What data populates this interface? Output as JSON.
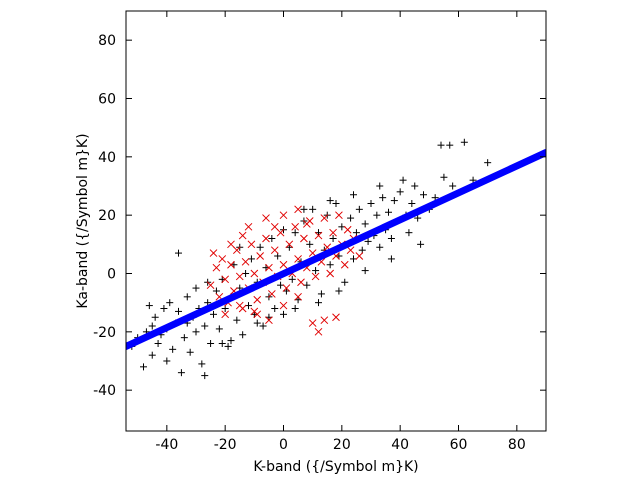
{
  "chart_data": {
    "type": "scatter",
    "title": "",
    "xlabel": "K-band ({/Symbol m}K)",
    "ylabel": "Ka-band ({/Symbol m}K)",
    "xlim": [
      -54,
      90
    ],
    "ylim": [
      -54,
      90
    ],
    "xticks": [
      -40,
      -20,
      0,
      20,
      40,
      60,
      80
    ],
    "yticks": [
      -40,
      -20,
      0,
      20,
      40,
      60,
      80
    ],
    "colors": {
      "black_series": "#000000",
      "red_series": "#e00000",
      "fit_line": "#0000ff"
    },
    "series": [
      {
        "marker": "plus",
        "color": "#000000",
        "points": [
          [
            -52,
            -25
          ],
          [
            -50,
            -22
          ],
          [
            -48,
            -32
          ],
          [
            -47,
            -20
          ],
          [
            -45,
            -18
          ],
          [
            -45,
            -28
          ],
          [
            -44,
            -15
          ],
          [
            -43,
            -24
          ],
          [
            -42,
            -21
          ],
          [
            -41,
            -12
          ],
          [
            -40,
            -30
          ],
          [
            -40,
            -19
          ],
          [
            -39,
            -10
          ],
          [
            -38,
            -26
          ],
          [
            -37,
            -17
          ],
          [
            -36,
            7
          ],
          [
            -36,
            -13
          ],
          [
            -35,
            -34
          ],
          [
            -34,
            -22
          ],
          [
            -33,
            -8
          ],
          [
            -32,
            -27
          ],
          [
            -31,
            -15
          ],
          [
            -30,
            -5
          ],
          [
            -30,
            -20
          ],
          [
            -29,
            -12
          ],
          [
            -28,
            -31
          ],
          [
            -27,
            -18
          ],
          [
            -26,
            -3
          ],
          [
            -26,
            -10
          ],
          [
            -25,
            -24
          ],
          [
            -24,
            -14
          ],
          [
            -23,
            -6
          ],
          [
            -22,
            -19
          ],
          [
            -21,
            -2
          ],
          [
            -20,
            -12
          ],
          [
            -19,
            -25
          ],
          [
            -18,
            -8
          ],
          [
            -17,
            3
          ],
          [
            -16,
            -16
          ],
          [
            -15,
            -5
          ],
          [
            -14,
            -21
          ],
          [
            -13,
            0
          ],
          [
            -12,
            -11
          ],
          [
            -11,
            5
          ],
          [
            -10,
            -14
          ],
          [
            -9,
            -3
          ],
          [
            -8,
            9
          ],
          [
            -7,
            -18
          ],
          [
            -6,
            2
          ],
          [
            -5,
            -8
          ],
          [
            -4,
            12
          ],
          [
            -3,
            -12
          ],
          [
            -2,
            6
          ],
          [
            -1,
            -4
          ],
          [
            0,
            15
          ],
          [
            1,
            -6
          ],
          [
            2,
            9
          ],
          [
            3,
            -2
          ],
          [
            4,
            14
          ],
          [
            5,
            -9
          ],
          [
            6,
            4
          ],
          [
            7,
            18
          ],
          [
            8,
            -4
          ],
          [
            9,
            10
          ],
          [
            10,
            22
          ],
          [
            11,
            1
          ],
          [
            12,
            14
          ],
          [
            13,
            -7
          ],
          [
            14,
            8
          ],
          [
            15,
            20
          ],
          [
            16,
            3
          ],
          [
            17,
            12
          ],
          [
            18,
            24
          ],
          [
            19,
            6
          ],
          [
            20,
            16
          ],
          [
            21,
            -3
          ],
          [
            22,
            10
          ],
          [
            23,
            19
          ],
          [
            24,
            5
          ],
          [
            25,
            14
          ],
          [
            26,
            22
          ],
          [
            27,
            8
          ],
          [
            28,
            17
          ],
          [
            29,
            11
          ],
          [
            30,
            24
          ],
          [
            31,
            13
          ],
          [
            32,
            20
          ],
          [
            33,
            9
          ],
          [
            34,
            26
          ],
          [
            35,
            15
          ],
          [
            36,
            21
          ],
          [
            37,
            12
          ],
          [
            38,
            25
          ],
          [
            39,
            18
          ],
          [
            40,
            28
          ],
          [
            42,
            20
          ],
          [
            43,
            14
          ],
          [
            44,
            24
          ],
          [
            45,
            30
          ],
          [
            46,
            19
          ],
          [
            48,
            27
          ],
          [
            50,
            22
          ],
          [
            52,
            26
          ],
          [
            54,
            44
          ],
          [
            55,
            33
          ],
          [
            57,
            44
          ],
          [
            58,
            30
          ],
          [
            62,
            45
          ],
          [
            65,
            32
          ],
          [
            70,
            38
          ],
          [
            -46,
            -11
          ],
          [
            -33,
            -17
          ],
          [
            -27,
            -35
          ],
          [
            -21,
            -24
          ],
          [
            -18,
            -23
          ],
          [
            -15,
            9
          ],
          [
            -9,
            -17
          ],
          [
            -5,
            -15
          ],
          [
            0,
            -14
          ],
          [
            4,
            -12
          ],
          [
            7,
            22
          ],
          [
            12,
            -10
          ],
          [
            16,
            25
          ],
          [
            19,
            -6
          ],
          [
            24,
            27
          ],
          [
            28,
            1
          ],
          [
            33,
            30
          ],
          [
            37,
            5
          ],
          [
            41,
            32
          ],
          [
            47,
            10
          ]
        ]
      },
      {
        "marker": "cross",
        "color": "#e00000",
        "points": [
          [
            -25,
            -4
          ],
          [
            -23,
            2
          ],
          [
            -22,
            -8
          ],
          [
            -21,
            5
          ],
          [
            -20,
            -2
          ],
          [
            -19,
            -10
          ],
          [
            -18,
            3
          ],
          [
            -17,
            -6
          ],
          [
            -16,
            8
          ],
          [
            -15,
            -1
          ],
          [
            -14,
            -12
          ],
          [
            -13,
            4
          ],
          [
            -12,
            -5
          ],
          [
            -11,
            10
          ],
          [
            -10,
            0
          ],
          [
            -9,
            -9
          ],
          [
            -8,
            6
          ],
          [
            -7,
            -3
          ],
          [
            -6,
            12
          ],
          [
            -5,
            2
          ],
          [
            -4,
            -7
          ],
          [
            -3,
            8
          ],
          [
            -2,
            -1
          ],
          [
            -1,
            14
          ],
          [
            0,
            3
          ],
          [
            1,
            -5
          ],
          [
            2,
            10
          ],
          [
            3,
            0
          ],
          [
            4,
            16
          ],
          [
            5,
            5
          ],
          [
            6,
            -3
          ],
          [
            7,
            12
          ],
          [
            8,
            2
          ],
          [
            9,
            18
          ],
          [
            10,
            7
          ],
          [
            11,
            -1
          ],
          [
            12,
            13
          ],
          [
            13,
            4
          ],
          [
            14,
            19
          ],
          [
            15,
            9
          ],
          [
            16,
            0
          ],
          [
            17,
            14
          ],
          [
            18,
            6
          ],
          [
            19,
            20
          ],
          [
            20,
            10
          ],
          [
            21,
            3
          ],
          [
            22,
            15
          ],
          [
            23,
            8
          ],
          [
            24,
            12
          ],
          [
            26,
            6
          ],
          [
            -20,
            -14
          ],
          [
            -15,
            -11
          ],
          [
            -10,
            -13
          ],
          [
            -5,
            -16
          ],
          [
            0,
            -11
          ],
          [
            5,
            -8
          ],
          [
            10,
            -17
          ],
          [
            12,
            -20
          ],
          [
            14,
            -16
          ],
          [
            18,
            -15
          ],
          [
            -24,
            7
          ],
          [
            -18,
            10
          ],
          [
            -12,
            16
          ],
          [
            -6,
            19
          ],
          [
            0,
            20
          ],
          [
            5,
            22
          ],
          [
            8,
            17
          ],
          [
            -3,
            16
          ],
          [
            -9,
            -14
          ],
          [
            -14,
            13
          ]
        ]
      },
      {
        "marker": "line",
        "color": "#0000ff",
        "points": [
          [
            -54,
            -25.0
          ],
          [
            90,
            41.5
          ]
        ]
      }
    ]
  }
}
